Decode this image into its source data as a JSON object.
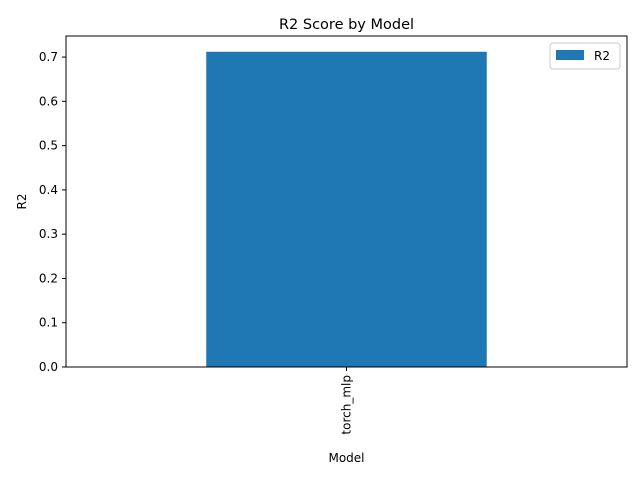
{
  "chart_data": {
    "type": "bar",
    "title": "R2 Score by Model",
    "xlabel": "Model",
    "ylabel": "R2",
    "categories": [
      "torch_mlp"
    ],
    "series": [
      {
        "name": "R2",
        "values": [
          0.712
        ],
        "color": "#1f77b4"
      }
    ],
    "ylim": [
      0,
      0.7476
    ],
    "yticks": [
      0.0,
      0.1,
      0.2,
      0.3,
      0.4,
      0.5,
      0.6,
      0.7
    ],
    "ytick_labels": [
      "0.0",
      "0.1",
      "0.2",
      "0.3",
      "0.4",
      "0.5",
      "0.6",
      "0.7"
    ],
    "grid": false,
    "legend": {
      "position": "top-right"
    }
  }
}
